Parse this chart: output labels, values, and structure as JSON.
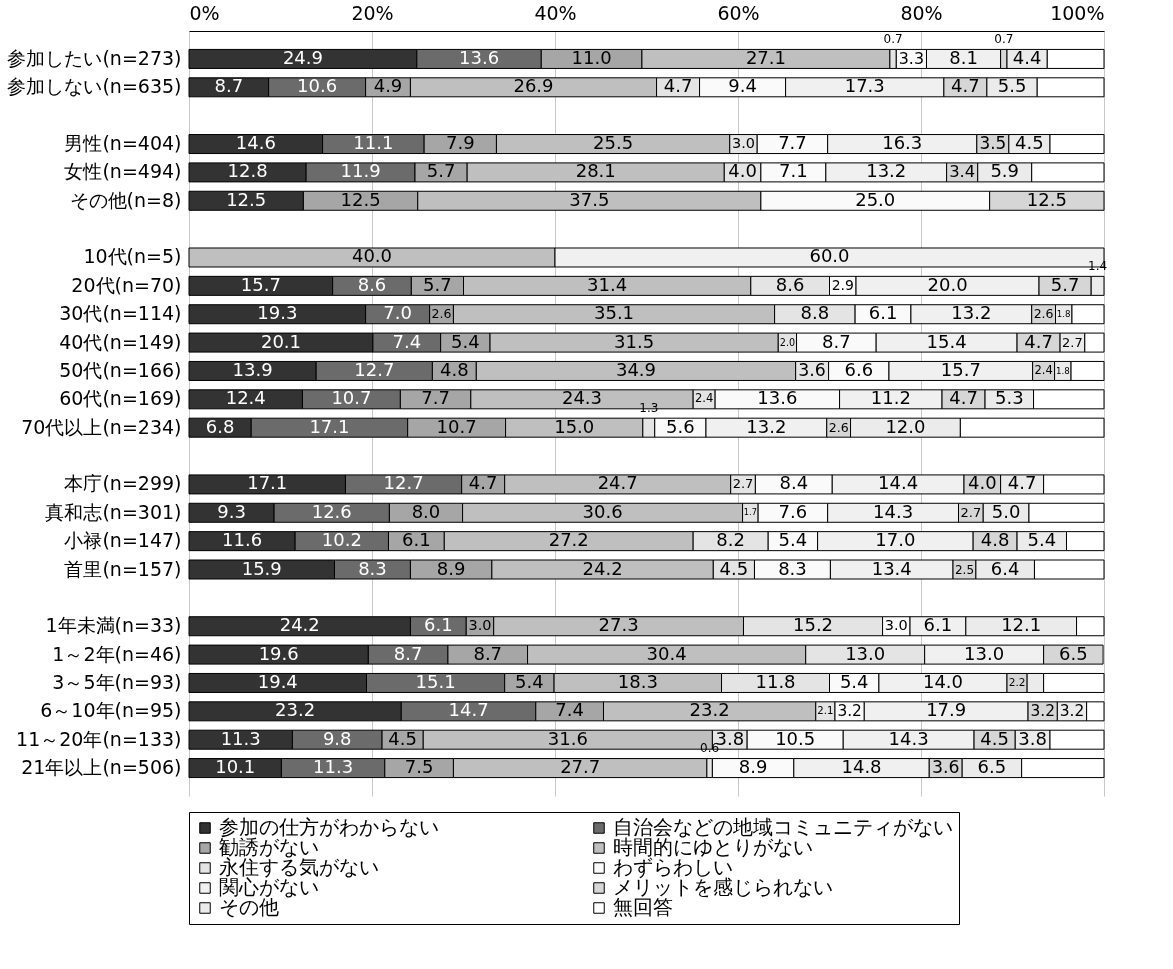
{
  "chart_data": {
    "type": "bar",
    "orientation": "horizontal",
    "stacked": true,
    "categories": [
      "参加したい(n=273)",
      "参加しない(n=635)",
      null,
      "男性(n=404)",
      "女性(n=494)",
      "その他(n=8)",
      null,
      "10代(n=5)",
      "20代(n=70)",
      "30代(n=114)",
      "40代(n=149)",
      "50代(n=166)",
      "60代(n=169)",
      "70代以上(n=234)",
      null,
      "本庁(n=299)",
      "真和志(n=301)",
      "小禄(n=147)",
      "首里(n=157)",
      null,
      "1年未満(n=33)",
      "1～2年(n=46)",
      "3～5年(n=93)",
      "6～10年(n=95)",
      "11～20年(n=133)",
      "21年以上(n=506)"
    ],
    "xlim": [
      0,
      100
    ],
    "xticks": [
      {
        "value": 0,
        "label": "0%"
      },
      {
        "value": 20,
        "label": "20%"
      },
      {
        "value": 40,
        "label": "40%"
      },
      {
        "value": 60,
        "label": "60%"
      },
      {
        "value": 80,
        "label": "80%"
      },
      {
        "value": 100,
        "label": "100%"
      }
    ],
    "grid": "x",
    "legend": "bottom",
    "series": [
      {
        "name": "参加の仕方がわからない",
        "color": "#333333",
        "values": [
          24.9,
          8.7,
          null,
          14.6,
          12.8,
          12.5,
          null,
          null,
          15.7,
          19.3,
          20.1,
          13.9,
          12.4,
          6.8,
          null,
          17.1,
          9.3,
          11.6,
          15.9,
          null,
          24.2,
          19.6,
          19.4,
          23.2,
          11.3,
          10.1
        ],
        "value_labels": [
          "24.9",
          "8.7",
          null,
          "14.6",
          "12.8",
          "12.5",
          null,
          null,
          "15.7",
          "19.3",
          "20.1",
          "13.9",
          "12.4",
          "6.8",
          null,
          "17.1",
          "9.3",
          "11.6",
          "15.9",
          null,
          "24.2",
          "19.6",
          "19.4",
          "23.2",
          "11.3",
          "10.1"
        ]
      },
      {
        "name": "自治会などの地域コミュニティがない",
        "color": "#6b6b6b",
        "values": [
          13.6,
          10.6,
          null,
          11.1,
          11.9,
          null,
          null,
          null,
          8.6,
          7.0,
          7.4,
          12.7,
          10.7,
          17.1,
          null,
          12.7,
          12.6,
          10.2,
          8.3,
          null,
          6.1,
          8.7,
          15.1,
          14.7,
          9.8,
          11.3
        ],
        "value_labels": [
          "13.6",
          "10.6",
          null,
          "11.1",
          "11.9",
          null,
          null,
          null,
          "8.6",
          "7.0",
          "7.4",
          "12.7",
          "10.7",
          "17.1",
          null,
          "12.7",
          "12.6",
          "10.2",
          "8.3",
          null,
          "6.1",
          "8.7",
          "15.1",
          "14.7",
          "9.8",
          "11.3"
        ]
      },
      {
        "name": "勧誘がない",
        "color": "#a6a6a6",
        "values": [
          11.0,
          4.9,
          null,
          7.9,
          5.7,
          12.5,
          null,
          null,
          5.7,
          2.6,
          5.4,
          4.8,
          7.7,
          10.7,
          null,
          4.7,
          8.0,
          6.1,
          8.9,
          null,
          3.0,
          8.7,
          5.4,
          7.4,
          4.5,
          7.5
        ],
        "value_labels": [
          "11.0",
          "4.9",
          null,
          "7.9",
          "5.7",
          "12.5",
          null,
          null,
          "5.7",
          "2.6",
          "5.4",
          "4.8",
          "7.7",
          "10.7",
          null,
          "4.7",
          "8.0",
          "6.1",
          "8.9",
          null,
          "3.0",
          "8.7",
          "5.4",
          "7.4",
          "4.5",
          "7.5"
        ]
      },
      {
        "name": "時間的にゆとりがない",
        "color": "#bfbfbf",
        "values": [
          27.1,
          26.9,
          null,
          25.5,
          28.1,
          37.5,
          null,
          40.0,
          31.4,
          35.1,
          31.5,
          34.9,
          24.3,
          15.0,
          null,
          24.7,
          30.6,
          27.2,
          24.2,
          null,
          27.3,
          30.4,
          18.3,
          23.2,
          31.6,
          27.7
        ],
        "value_labels": [
          "27.1",
          "26.9",
          null,
          "25.5",
          "28.1",
          "37.5",
          null,
          "40.0",
          "31.4",
          "35.1",
          "31.5",
          "34.9",
          "24.3",
          "15.0",
          null,
          "24.7",
          "30.6",
          "27.2",
          "24.2",
          null,
          "27.3",
          "30.4",
          "18.3",
          "23.2",
          "31.6",
          "27.7"
        ]
      },
      {
        "name": "永住する気がない",
        "color": "#e4e4e4",
        "values": [
          0.7,
          4.7,
          null,
          3.0,
          4.0,
          null,
          null,
          null,
          8.6,
          8.8,
          2.0,
          3.6,
          2.4,
          1.3,
          null,
          2.7,
          1.7,
          8.2,
          4.5,
          null,
          15.2,
          13.0,
          11.8,
          2.1,
          3.8,
          0.6
        ],
        "value_labels": [
          "0.7",
          "4.7",
          null,
          "3.0",
          "4.0",
          null,
          null,
          null,
          "8.6",
          "8.8",
          "2.0",
          "3.6",
          "2.4",
          "1.3",
          null,
          "2.7",
          "1.7",
          "8.2",
          "4.5",
          null,
          "15.2",
          "13.0",
          "11.8",
          "2.1",
          "3.8",
          "0.6"
        ]
      },
      {
        "name": "わずらわしい",
        "color": "#fafafa",
        "values": [
          3.3,
          9.4,
          null,
          7.7,
          7.1,
          25.0,
          null,
          null,
          2.9,
          6.1,
          8.7,
          6.6,
          13.6,
          5.6,
          null,
          8.4,
          7.6,
          5.4,
          8.3,
          null,
          3.0,
          null,
          5.4,
          3.2,
          10.5,
          8.9
        ],
        "value_labels": [
          "3.3",
          "9.4",
          null,
          "7.7",
          "7.1",
          "25.0",
          null,
          null,
          "2.9",
          "6.1",
          "8.7",
          "6.6",
          "13.6",
          "5.6",
          null,
          "8.4",
          "7.6",
          "5.4",
          "8.3",
          null,
          "3.0",
          null,
          "5.4",
          "3.2",
          "10.5",
          "8.9"
        ]
      },
      {
        "name": "関心がない",
        "color": "#f0f0f0",
        "values": [
          8.1,
          17.3,
          null,
          16.3,
          13.2,
          null,
          null,
          60.0,
          20.0,
          13.2,
          15.4,
          15.7,
          11.2,
          13.2,
          null,
          14.4,
          14.3,
          17.0,
          13.4,
          null,
          6.1,
          13.0,
          14.0,
          17.9,
          14.3,
          14.8
        ],
        "value_labels": [
          "8.1",
          "17.3",
          null,
          "16.3",
          "13.2",
          null,
          null,
          "60.0",
          "20.0",
          "13.2",
          "15.4",
          "15.7",
          "11.2",
          "13.2",
          null,
          "14.4",
          "14.3",
          "17.0",
          "13.4",
          null,
          "6.1",
          "13.0",
          "14.0",
          "17.9",
          "14.3",
          "14.8"
        ]
      },
      {
        "name": "メリットを感じられない",
        "color": "#d6d6d6",
        "values": [
          0.7,
          4.7,
          null,
          3.5,
          3.4,
          12.5,
          null,
          null,
          5.7,
          2.6,
          4.7,
          2.4,
          4.7,
          2.6,
          null,
          4.0,
          2.7,
          4.8,
          2.5,
          null,
          null,
          6.5,
          2.2,
          3.2,
          4.5,
          3.6
        ],
        "value_labels": [
          "0.7",
          "4.7",
          null,
          "3.5",
          "3.4",
          "12.5",
          null,
          null,
          "5.7",
          "2.6",
          "4.7",
          "2.4",
          "4.7",
          "2.6",
          null,
          "4.0",
          "2.7",
          "4.8",
          "2.5",
          null,
          null,
          "6.5",
          "2.2",
          "3.2",
          "4.5",
          "3.6"
        ]
      },
      {
        "name": "その他",
        "color": "#ebebeb",
        "values": [
          4.4,
          5.5,
          null,
          4.5,
          5.9,
          null,
          null,
          null,
          1.4,
          1.8,
          2.7,
          1.8,
          5.3,
          12.0,
          null,
          4.7,
          5.0,
          5.4,
          6.4,
          null,
          12.1,
          null,
          1.8,
          3.2,
          3.8,
          6.5
        ],
        "value_labels": [
          "4.4",
          "5.5",
          null,
          "4.5",
          "5.9",
          null,
          null,
          null,
          "1.4",
          "1.8",
          "2.7",
          "1.8",
          "5.3",
          "12.0",
          null,
          "4.7",
          "5.0",
          "5.4",
          "6.4",
          null,
          "12.1",
          null,
          null,
          "3.2",
          "3.8",
          "6.5"
        ]
      },
      {
        "name": "無回答",
        "color": "#ffffff",
        "values": [
          6.2,
          7.3,
          null,
          5.9,
          7.9,
          null,
          null,
          null,
          null,
          3.5,
          2.1,
          3.6,
          7.7,
          15.7,
          null,
          6.6,
          8.2,
          4.1,
          7.6,
          null,
          3.0,
          null,
          6.6,
          1.9,
          5.9,
          9.0
        ]
      }
    ]
  }
}
